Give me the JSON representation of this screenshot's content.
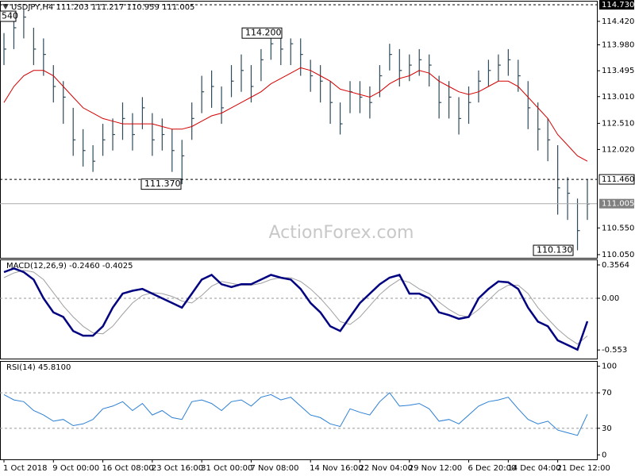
{
  "chart_data": [
    {
      "type": "hlc",
      "title": "USDJPY,H4  111.203 111.217 110.959 111.005",
      "watermark": "ActionForex.com",
      "categories": [
        "1 Oct 2018",
        null,
        null,
        null,
        null,
        "9 Oct 00:00",
        null,
        null,
        null,
        null,
        "16 Oct 08:00",
        null,
        null,
        null,
        null,
        "23 Oct 16:00",
        null,
        null,
        null,
        null,
        "31 Oct 00:00",
        null,
        null,
        null,
        null,
        "7 Nov 08:00",
        null,
        null,
        null,
        null,
        null,
        "14 Nov 16:00",
        null,
        null,
        null,
        null,
        "22 Nov 04:00",
        null,
        null,
        null,
        null,
        "29 Nov 12:00",
        null,
        null,
        null,
        null,
        null,
        "6 Dec 20:00",
        null,
        null,
        null,
        "14 Dec 04:00",
        null,
        null,
        null,
        null,
        "21 Dec 12:00",
        null,
        null,
        null
      ],
      "bars": {
        "color": "#2f4a5a",
        "high": [
          114.2,
          114.5,
          114.65,
          114.3,
          114.1,
          113.6,
          113.3,
          112.8,
          112.4,
          112.1,
          112.5,
          112.6,
          112.9,
          112.7,
          113.0,
          112.7,
          112.6,
          112.4,
          112.2,
          112.9,
          113.4,
          113.5,
          113.2,
          113.6,
          113.8,
          113.6,
          113.9,
          114.2,
          114.2,
          114.1,
          114.1,
          113.7,
          113.6,
          113.3,
          112.9,
          113.3,
          113.3,
          113.2,
          113.6,
          114.0,
          113.9,
          113.8,
          113.9,
          113.8,
          113.4,
          113.3,
          113.0,
          113.2,
          113.5,
          113.7,
          113.8,
          113.9,
          113.7,
          113.3,
          112.9,
          112.6,
          112.1,
          111.5,
          111.1,
          111.46
        ],
        "low": [
          113.6,
          113.9,
          114.1,
          113.6,
          113.4,
          112.9,
          112.5,
          111.9,
          111.7,
          111.6,
          111.9,
          112.0,
          112.2,
          112.0,
          112.4,
          111.9,
          112.0,
          111.6,
          111.37,
          112.2,
          112.7,
          112.8,
          112.5,
          113.0,
          113.1,
          112.9,
          113.3,
          113.7,
          113.6,
          113.6,
          113.4,
          113.1,
          112.9,
          112.5,
          112.3,
          112.7,
          112.7,
          112.6,
          113.0,
          113.5,
          113.2,
          113.3,
          113.4,
          113.2,
          112.6,
          112.6,
          112.3,
          112.5,
          112.9,
          113.2,
          113.3,
          113.4,
          113.1,
          112.4,
          112.0,
          111.8,
          110.8,
          110.7,
          110.13,
          110.7
        ],
        "close": [
          113.9,
          114.3,
          114.5,
          113.9,
          113.8,
          113.2,
          113.0,
          112.2,
          112.0,
          111.8,
          112.2,
          112.3,
          112.6,
          112.3,
          112.8,
          112.2,
          112.3,
          112.0,
          111.9,
          112.6,
          113.1,
          113.2,
          112.8,
          113.3,
          113.5,
          113.2,
          113.7,
          114.0,
          113.9,
          114.0,
          113.8,
          113.4,
          113.3,
          112.9,
          112.5,
          113.1,
          113.0,
          112.9,
          113.4,
          113.8,
          113.5,
          113.6,
          113.7,
          113.6,
          112.9,
          113.0,
          112.6,
          112.9,
          113.3,
          113.5,
          113.6,
          113.7,
          113.4,
          112.8,
          112.4,
          112.2,
          111.3,
          111.2,
          110.5,
          111.0
        ]
      },
      "ma": {
        "color": "#d40000",
        "values": [
          112.9,
          113.2,
          113.4,
          113.5,
          113.5,
          113.4,
          113.2,
          113.0,
          112.8,
          112.7,
          112.6,
          112.55,
          112.5,
          112.5,
          112.5,
          112.5,
          112.45,
          112.4,
          112.4,
          112.45,
          112.55,
          112.65,
          112.7,
          112.8,
          112.9,
          113.0,
          113.1,
          113.25,
          113.35,
          113.45,
          113.55,
          113.5,
          113.4,
          113.3,
          113.15,
          113.1,
          113.05,
          113.0,
          113.1,
          113.25,
          113.35,
          113.4,
          113.5,
          113.45,
          113.3,
          113.2,
          113.1,
          113.05,
          113.1,
          113.2,
          113.3,
          113.3,
          113.2,
          113.0,
          112.8,
          112.6,
          112.3,
          112.1,
          111.9,
          111.8
        ]
      },
      "ylim": [
        109.99,
        114.79
      ],
      "yticks": [
        {
          "value": 114.42,
          "label": "114.420"
        },
        {
          "value": 113.98,
          "label": "113.980"
        },
        113.495,
        {
          "value": 113.01,
          "label": "113.010"
        },
        {
          "value": 112.51,
          "label": "112.510"
        },
        {
          "value": 112.02,
          "label": "112.020"
        },
        {
          "value": 110.55,
          "label": "110.550"
        },
        {
          "value": 110.05,
          "label": "110.050"
        }
      ],
      "levels": [
        {
          "value": 114.73,
          "label": "114.730",
          "style": "dashed"
        },
        {
          "value": 111.46,
          "label": "111.460",
          "style": "dashed"
        },
        {
          "value": 111.005,
          "label": "111.005",
          "style": "solid"
        }
      ],
      "annotations": [
        {
          "value": 114.2,
          "label": "114.200"
        },
        {
          "value": 111.37,
          "label": "111.370"
        },
        {
          "value": 110.13,
          "label": "110.130"
        }
      ],
      "clipped_label": "540"
    },
    {
      "type": "line",
      "title": "MACD(12,26,9) -0.2460 -0.4025",
      "series": [
        {
          "color": "#000080",
          "width": 2.5,
          "values": [
            0.28,
            0.32,
            0.28,
            0.2,
            0.0,
            -0.15,
            -0.2,
            -0.35,
            -0.4,
            -0.4,
            -0.3,
            -0.1,
            0.05,
            0.08,
            0.1,
            0.05,
            0.0,
            -0.05,
            -0.1,
            0.05,
            0.2,
            0.25,
            0.15,
            0.12,
            0.15,
            0.15,
            0.2,
            0.25,
            0.22,
            0.2,
            0.1,
            -0.05,
            -0.15,
            -0.3,
            -0.35,
            -0.2,
            -0.05,
            0.05,
            0.15,
            0.22,
            0.25,
            0.05,
            0.05,
            0.0,
            -0.15,
            -0.18,
            -0.22,
            -0.2,
            0.0,
            0.1,
            0.18,
            0.17,
            0.1,
            -0.1,
            -0.25,
            -0.3,
            -0.45,
            -0.5,
            -0.55,
            -0.246
          ]
        },
        {
          "color": "#a0a0a0",
          "width": 1,
          "values": [
            0.22,
            0.27,
            0.3,
            0.28,
            0.2,
            0.06,
            -0.08,
            -0.2,
            -0.3,
            -0.37,
            -0.38,
            -0.3,
            -0.17,
            -0.05,
            0.03,
            0.06,
            0.05,
            0.02,
            -0.03,
            -0.05,
            0.03,
            0.13,
            0.18,
            0.16,
            0.14,
            0.14,
            0.16,
            0.2,
            0.22,
            0.22,
            0.18,
            0.1,
            0.0,
            -0.12,
            -0.25,
            -0.28,
            -0.2,
            -0.08,
            0.04,
            0.13,
            0.2,
            0.17,
            0.1,
            0.05,
            -0.04,
            -0.12,
            -0.18,
            -0.2,
            -0.12,
            -0.02,
            0.08,
            0.14,
            0.14,
            0.05,
            -0.1,
            -0.22,
            -0.33,
            -0.42,
            -0.49,
            -0.4025
          ]
        }
      ],
      "ylim": [
        -0.645,
        0.407
      ],
      "yticks": [
        0.3564,
        {
          "value": 0,
          "label": "0.00"
        },
        -0.553
      ]
    },
    {
      "type": "line",
      "title": "RSI(14) 45.8100",
      "series": [
        {
          "color": "#2a7fd4",
          "width": 1,
          "values": [
            68,
            62,
            60,
            50,
            45,
            38,
            40,
            33,
            35,
            40,
            52,
            55,
            60,
            50,
            58,
            45,
            50,
            42,
            40,
            60,
            62,
            58,
            50,
            60,
            62,
            55,
            65,
            68,
            62,
            65,
            55,
            45,
            42,
            35,
            32,
            52,
            48,
            45,
            60,
            70,
            55,
            56,
            58,
            52,
            38,
            40,
            35,
            45,
            55,
            60,
            62,
            65,
            52,
            40,
            35,
            38,
            28,
            25,
            22,
            45.81
          ]
        }
      ],
      "ylim": [
        -5,
        105
      ],
      "yticks": [
        100,
        70,
        30,
        0
      ],
      "levels": [
        70,
        30
      ]
    }
  ]
}
